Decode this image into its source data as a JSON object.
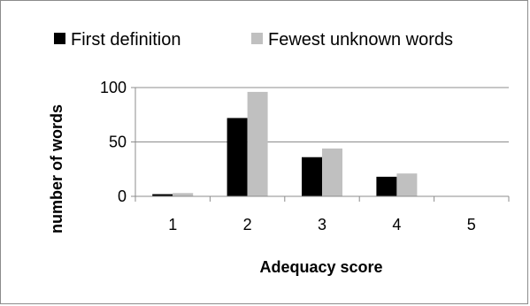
{
  "chart_data": {
    "type": "bar",
    "categories": [
      "1",
      "2",
      "3",
      "4",
      "5"
    ],
    "series": [
      {
        "name": "First definition",
        "values": [
          2,
          72,
          36,
          18,
          0
        ],
        "color": "#000000"
      },
      {
        "name": "Fewest unknown words",
        "values": [
          3,
          96,
          44,
          21,
          0
        ],
        "color": "#c0c0c0"
      }
    ],
    "xlabel": "Adequacy score",
    "ylabel": "number of words",
    "ylim": [
      0,
      100
    ],
    "yticks": [
      0,
      50,
      100
    ],
    "ytick_labels": [
      "0",
      "50",
      "100"
    ],
    "grid": true,
    "legend_position": "top"
  }
}
